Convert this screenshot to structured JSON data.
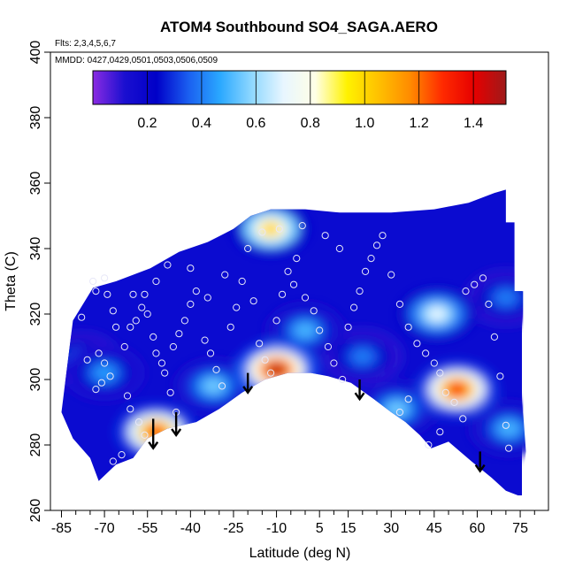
{
  "chart_data": {
    "type": "heatmap",
    "title": "ATOM4 Southbound SO4_SAGA.AERO",
    "flights_note": "Flts: 2,3,4,5,6,7",
    "dates_note": "MMDD: 0427,0429,0501,0503,0506,0509",
    "xlabel": "Latitude (deg N)",
    "ylabel": "Theta (C)",
    "xlim": [
      -87,
      83
    ],
    "ylim": [
      260,
      400
    ],
    "x_tick_values": [
      -85,
      -70,
      -55,
      -40,
      -25,
      -10,
      5,
      15,
      30,
      45,
      60,
      75
    ],
    "x_tick_labels": [
      "-85",
      "-70",
      "-55",
      "-40",
      "-25",
      "-10",
      "5",
      "15",
      "30",
      "45",
      "60",
      "75"
    ],
    "x_minor_ticks": [
      -80,
      -75,
      -65,
      -60,
      -50,
      -45,
      -35,
      -30,
      -20,
      -15,
      -5,
      0,
      10,
      20,
      25,
      35,
      40,
      50,
      55,
      65,
      70,
      80
    ],
    "y_tick_values": [
      260,
      280,
      300,
      320,
      340,
      360,
      380,
      400
    ],
    "y_tick_labels": [
      "260",
      "280",
      "300",
      "320",
      "340",
      "360",
      "380",
      "400"
    ],
    "colorbar": {
      "range": [
        0,
        1.52
      ],
      "tick_values": [
        0.2,
        0.4,
        0.6,
        0.8,
        1.0,
        1.2,
        1.4
      ],
      "tick_labels": [
        "0.2",
        "0.4",
        "0.6",
        "0.8",
        "1.0",
        "1.2",
        "1.4"
      ],
      "colors": [
        "#8a2be2",
        "#1a0fd0",
        "#0000c8",
        "#1a5ef0",
        "#2aa8ff",
        "#8fd8ff",
        "#e8f6ff",
        "#ffffe6",
        "#fff200",
        "#ffc000",
        "#ff8a00",
        "#ff2a00",
        "#e60000",
        "#9e1a1a"
      ]
    },
    "field_colors": {
      "background": "#0b0bd0",
      "low": "#1a0fd0",
      "violet": "#6a2ee0"
    },
    "hotspots": [
      {
        "x": -10,
        "y": 303,
        "value": 1.45
      },
      {
        "x": 53,
        "y": 297,
        "value": 1.3
      },
      {
        "x": -52,
        "y": 284,
        "value": 1.25
      },
      {
        "x": -12,
        "y": 346,
        "value": 1.0
      },
      {
        "x": 46,
        "y": 320,
        "value": 0.7
      },
      {
        "x": -32,
        "y": 298,
        "value": 0.55
      },
      {
        "x": -70,
        "y": 302,
        "value": 0.45
      },
      {
        "x": 0,
        "y": 315,
        "value": 0.5
      },
      {
        "x": 71,
        "y": 285,
        "value": 0.5
      },
      {
        "x": 70,
        "y": 325,
        "value": 0.4
      },
      {
        "x": 20,
        "y": 307,
        "value": 0.4
      },
      {
        "x": 32,
        "y": 291,
        "value": 0.55
      },
      {
        "x": -78,
        "y": 306,
        "value": 0.4
      }
    ],
    "coverage_top": [
      [
        -85,
        290
      ],
      [
        -81,
        318
      ],
      [
        -74,
        328
      ],
      [
        -66,
        330
      ],
      [
        -54,
        334
      ],
      [
        -44,
        339
      ],
      [
        -34,
        342
      ],
      [
        -25,
        346
      ],
      [
        -19,
        350
      ],
      [
        -12,
        352
      ],
      [
        0,
        352
      ],
      [
        12,
        351
      ],
      [
        30,
        351
      ],
      [
        45,
        352
      ],
      [
        57,
        354
      ],
      [
        66,
        357
      ],
      [
        70,
        358
      ],
      [
        70,
        348
      ],
      [
        73,
        348
      ],
      [
        73,
        327
      ],
      [
        76,
        327
      ],
      [
        76,
        290
      ],
      [
        77,
        278
      ],
      [
        76,
        270
      ],
      [
        76,
        264
      ]
    ],
    "coverage_bottom": [
      [
        -85,
        290
      ],
      [
        -81,
        282
      ],
      [
        -75,
        276
      ],
      [
        -72,
        269
      ],
      [
        -66,
        274
      ],
      [
        -60,
        276
      ],
      [
        -55,
        282
      ],
      [
        -48,
        285
      ],
      [
        -38,
        287
      ],
      [
        -30,
        291
      ],
      [
        -22,
        296
      ],
      [
        -14,
        300
      ],
      [
        -6,
        302
      ],
      [
        2,
        302
      ],
      [
        8,
        301
      ],
      [
        16,
        299
      ],
      [
        24,
        294
      ],
      [
        30,
        290
      ],
      [
        35,
        287
      ],
      [
        40,
        283
      ],
      [
        44,
        279
      ],
      [
        50,
        281
      ],
      [
        58,
        275
      ],
      [
        65,
        270
      ],
      [
        70,
        266
      ],
      [
        76,
        264
      ]
    ],
    "sample_points": [
      [
        -78,
        319
      ],
      [
        -74,
        330
      ],
      [
        -73,
        327
      ],
      [
        -70,
        331
      ],
      [
        -69,
        326
      ],
      [
        -67,
        321
      ],
      [
        -66,
        316
      ],
      [
        -72,
        308
      ],
      [
        -70,
        305
      ],
      [
        -68,
        301
      ],
      [
        -71,
        299
      ],
      [
        -73,
        297
      ],
      [
        -76,
        306
      ],
      [
        -63,
        310
      ],
      [
        -61,
        316
      ],
      [
        -59,
        318
      ],
      [
        -57,
        322
      ],
      [
        -56,
        326
      ],
      [
        -55,
        320
      ],
      [
        -53,
        313
      ],
      [
        -52,
        308
      ],
      [
        -50,
        305
      ],
      [
        -49,
        302
      ],
      [
        -47,
        296
      ],
      [
        -45,
        290
      ],
      [
        -46,
        310
      ],
      [
        -44,
        314
      ],
      [
        -42,
        318
      ],
      [
        -40,
        323
      ],
      [
        -38,
        327
      ],
      [
        -35,
        312
      ],
      [
        -33,
        308
      ],
      [
        -31,
        303
      ],
      [
        -29,
        298
      ],
      [
        -26,
        316
      ],
      [
        -24,
        322
      ],
      [
        -22,
        330
      ],
      [
        -18,
        324
      ],
      [
        -16,
        311
      ],
      [
        -14,
        306
      ],
      [
        -12,
        302
      ],
      [
        -10,
        318
      ],
      [
        -8,
        326
      ],
      [
        -6,
        333
      ],
      [
        -4,
        329
      ],
      [
        0,
        325
      ],
      [
        3,
        321
      ],
      [
        5,
        315
      ],
      [
        8,
        310
      ],
      [
        10,
        305
      ],
      [
        13,
        300
      ],
      [
        15,
        316
      ],
      [
        17,
        322
      ],
      [
        19,
        327
      ],
      [
        21,
        333
      ],
      [
        23,
        337
      ],
      [
        25,
        341
      ],
      [
        27,
        344
      ],
      [
        30,
        332
      ],
      [
        33,
        323
      ],
      [
        36,
        316
      ],
      [
        39,
        311
      ],
      [
        42,
        308
      ],
      [
        45,
        305
      ],
      [
        47,
        302
      ],
      [
        49,
        296
      ],
      [
        52,
        293
      ],
      [
        55,
        288
      ],
      [
        43,
        280
      ],
      [
        47,
        284
      ],
      [
        33,
        290
      ],
      [
        36,
        294
      ],
      [
        56,
        327
      ],
      [
        59,
        329
      ],
      [
        62,
        331
      ],
      [
        64,
        323
      ],
      [
        66,
        313
      ],
      [
        68,
        301
      ],
      [
        70,
        286
      ],
      [
        71,
        279
      ],
      [
        -61,
        291
      ],
      [
        -58,
        287
      ],
      [
        -56,
        283
      ],
      [
        -53,
        280
      ],
      [
        -64,
        277
      ],
      [
        -67,
        275
      ],
      [
        -62,
        295
      ],
      [
        -9,
        346
      ],
      [
        -1,
        347
      ],
      [
        7,
        344
      ],
      [
        12,
        340
      ],
      [
        -3,
        337
      ],
      [
        -15,
        345
      ],
      [
        -20,
        340
      ],
      [
        -28,
        332
      ],
      [
        -34,
        325
      ],
      [
        -40,
        334
      ],
      [
        -48,
        335
      ],
      [
        -52,
        330
      ],
      [
        -60,
        326
      ]
    ],
    "arrows": [
      {
        "x": -53,
        "y_from": 288,
        "y_to": 279
      },
      {
        "x": -45,
        "y_from": 290,
        "y_to": 283
      },
      {
        "x": -20,
        "y_from": 302,
        "y_to": 296
      },
      {
        "x": 19,
        "y_from": 300,
        "y_to": 294
      },
      {
        "x": 61,
        "y_from": 278,
        "y_to": 272
      }
    ]
  }
}
